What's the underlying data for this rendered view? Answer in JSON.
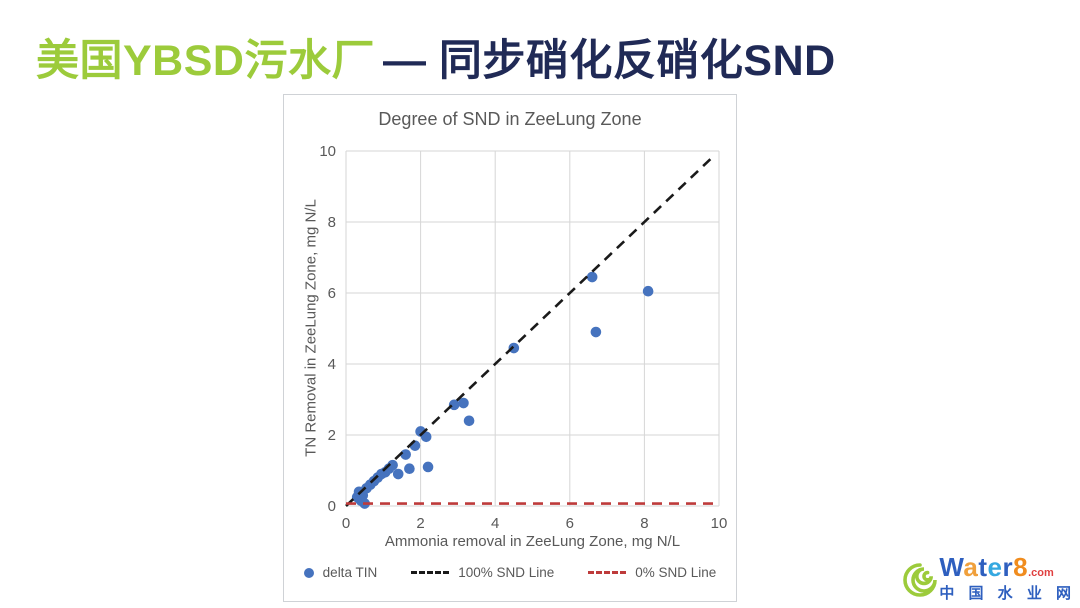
{
  "slide_title": {
    "part1": "美国YBSD污水厂",
    "part2": "— 同步硝化反硝化SND",
    "part1_color": "#9CCB3B",
    "part2_color": "#202A56"
  },
  "chart_data": {
    "type": "scatter",
    "title": "Degree of SND in ZeeLung Zone",
    "xlabel": "Ammonia removal in ZeeLung Zone, mg N/L",
    "ylabel": "TN Removal in ZeeLung Zone, mg N/L",
    "xlim": [
      0,
      10
    ],
    "ylim": [
      0,
      10
    ],
    "xticks": [
      0,
      2,
      4,
      6,
      8,
      10
    ],
    "yticks": [
      0,
      2,
      4,
      6,
      8,
      10
    ],
    "grid": true,
    "gridline_color": "#D6D6D6",
    "legend_position": "bottom",
    "series": [
      {
        "name": "delta TIN",
        "type": "scatter",
        "color": "#4673BE",
        "points": [
          [
            0.3,
            0.25
          ],
          [
            0.35,
            0.4
          ],
          [
            0.4,
            0.15
          ],
          [
            0.45,
            0.3
          ],
          [
            0.5,
            0.07
          ],
          [
            0.55,
            0.5
          ],
          [
            0.65,
            0.6
          ],
          [
            0.75,
            0.7
          ],
          [
            0.85,
            0.8
          ],
          [
            0.95,
            0.9
          ],
          [
            1.05,
            0.95
          ],
          [
            1.15,
            1.05
          ],
          [
            1.25,
            1.15
          ],
          [
            1.4,
            0.9
          ],
          [
            1.6,
            1.45
          ],
          [
            1.7,
            1.05
          ],
          [
            1.85,
            1.7
          ],
          [
            2.0,
            2.1
          ],
          [
            2.15,
            1.95
          ],
          [
            2.2,
            1.1
          ],
          [
            2.9,
            2.85
          ],
          [
            3.15,
            2.9
          ],
          [
            3.3,
            2.4
          ],
          [
            4.5,
            4.45
          ],
          [
            6.6,
            6.45
          ],
          [
            6.7,
            4.9
          ],
          [
            8.1,
            6.05
          ]
        ]
      },
      {
        "name": "100% SND Line",
        "type": "dashed_line",
        "color": "#1A1A1A",
        "from": [
          0,
          0
        ],
        "to": [
          9.9,
          9.9
        ]
      },
      {
        "name": "0% SND Line",
        "type": "dashed_line",
        "color": "#BE3B3B",
        "from": [
          0,
          0.07
        ],
        "to": [
          10,
          0.07
        ]
      }
    ]
  },
  "watermark": {
    "brand_letters": [
      {
        "ch": "W",
        "color": "#2E5FBF"
      },
      {
        "ch": "a",
        "color": "#F0A03C"
      },
      {
        "ch": "t",
        "color": "#2E5FBF"
      },
      {
        "ch": "e",
        "color": "#35A8E0"
      },
      {
        "ch": "r",
        "color": "#2E5FBF"
      },
      {
        "ch": "8",
        "color": "#F08C1E"
      }
    ],
    "brand_suffix": ".com",
    "brand_suffix_color": "#E04040",
    "cn_text": "中 国 水 业 网",
    "cn_color": "#2E5FBF",
    "swirl_color": "#9CCB3B"
  }
}
